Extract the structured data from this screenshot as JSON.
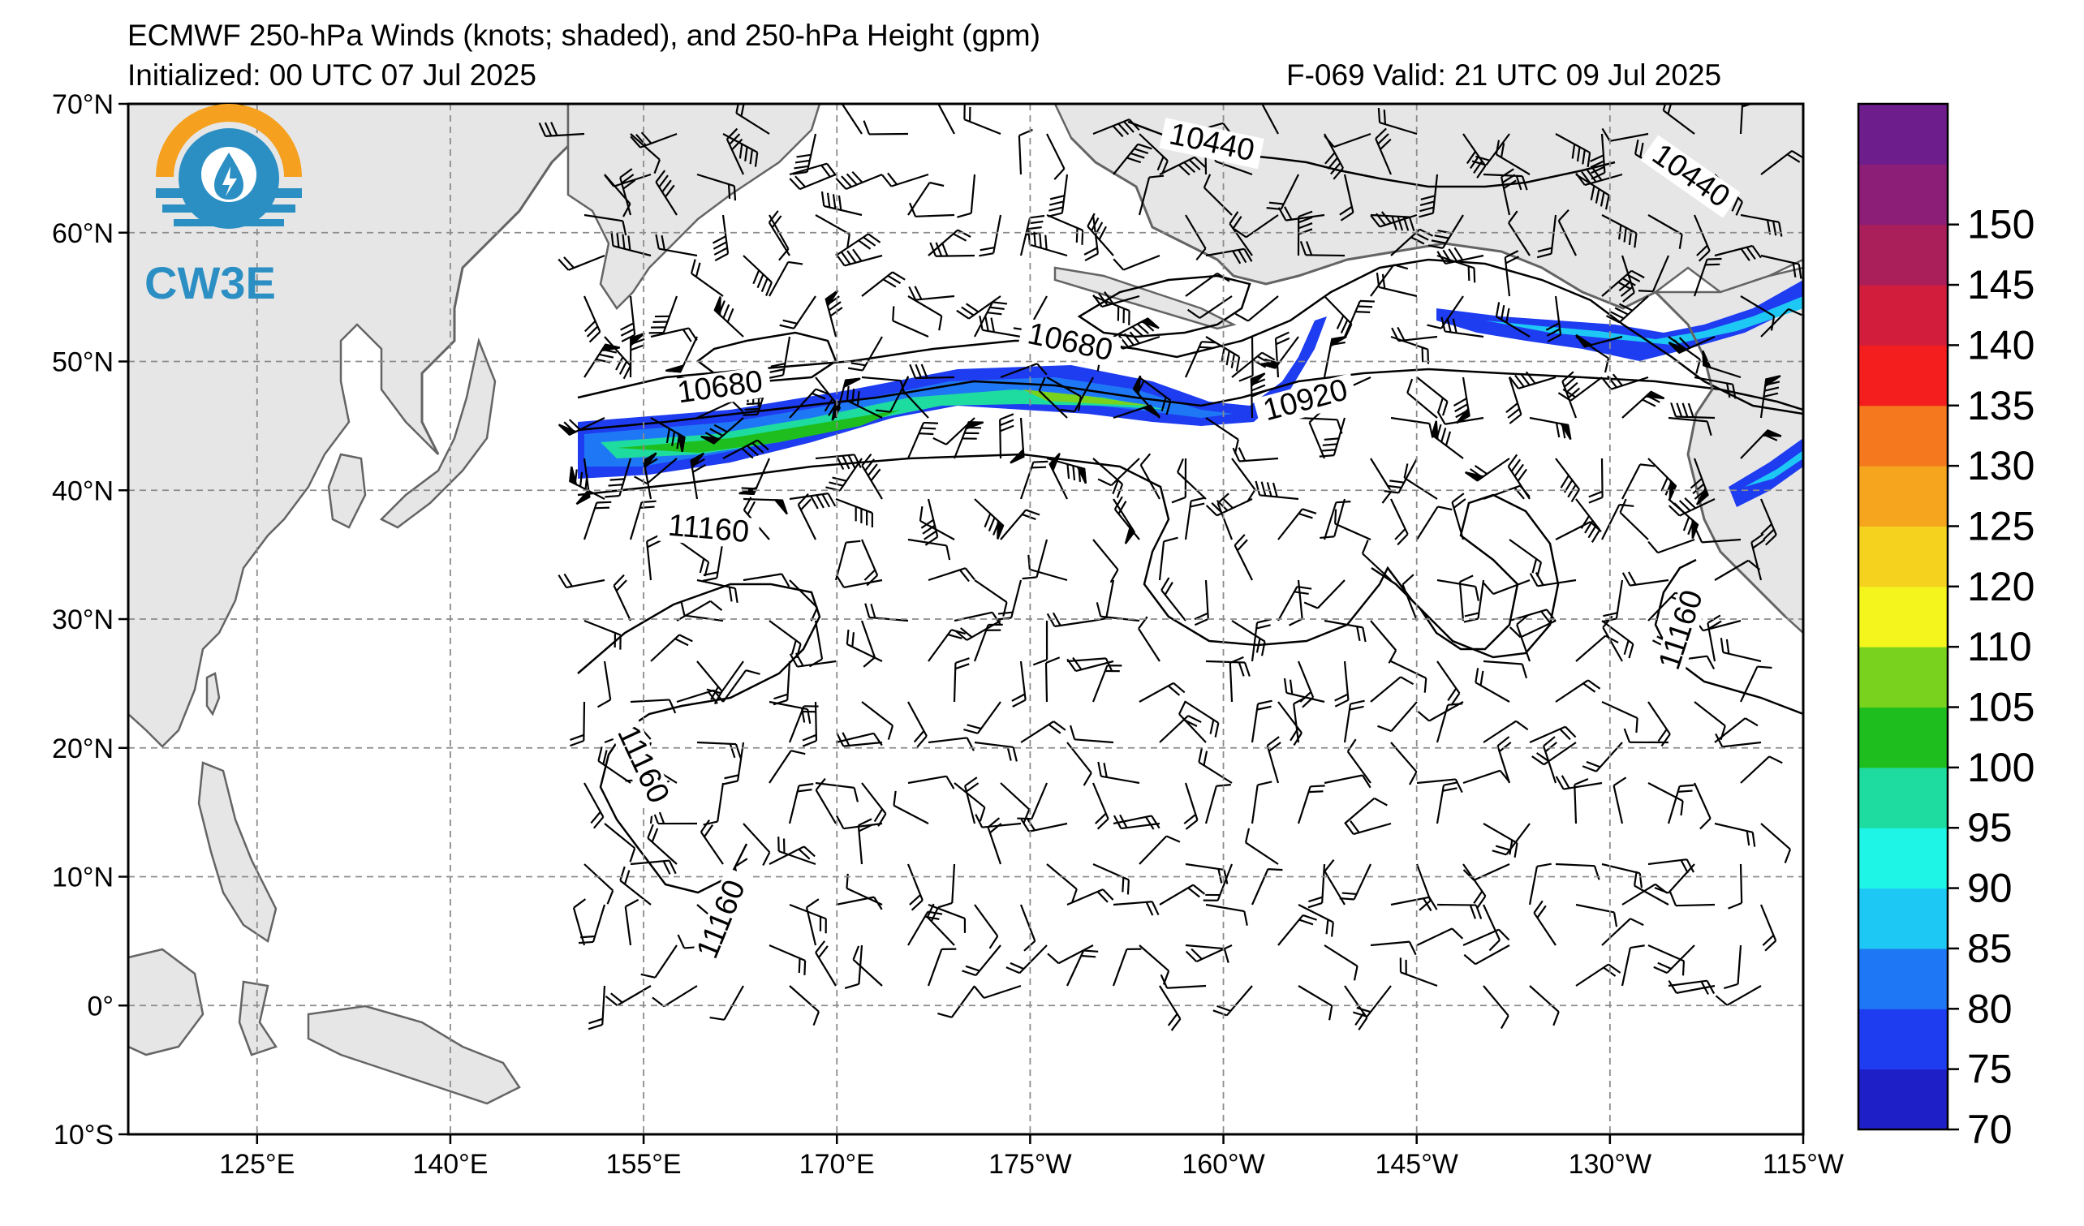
{
  "title": {
    "line1": "ECMWF 250-hPa Winds (knots; shaded), and 250-hPa Height (gpm)",
    "line2_left": "Initialized: 00 UTC 07 Jul 2025",
    "line2_right": "F-069  Valid: 21 UTC 09 Jul 2025"
  },
  "logo": {
    "text": "CW3E",
    "icon": "cw3e-water-drop-lightning-icon"
  },
  "map": {
    "lat_labels": [
      "70°N",
      "60°N",
      "50°N",
      "40°N",
      "30°N",
      "20°N",
      "10°N",
      "0°",
      "10°S"
    ],
    "lon_labels": [
      "125°E",
      "140°E",
      "155°E",
      "170°E",
      "175°W",
      "160°W",
      "145°W",
      "130°W",
      "115°W"
    ],
    "lat_range": [
      -10,
      70
    ],
    "lon_range_east": [
      115,
      245
    ],
    "contour_labels": [
      {
        "text": "10440",
        "lon": 199,
        "lat": 66.5,
        "rot": 12
      },
      {
        "text": "10440",
        "lon": 236,
        "lat": 64,
        "rot": 35
      },
      {
        "text": "10680",
        "lon": 188,
        "lat": 51,
        "rot": 12
      },
      {
        "text": "10680",
        "lon": 161,
        "lat": 47.5,
        "rot": -8
      },
      {
        "text": "10920",
        "lon": 206.5,
        "lat": 46.5,
        "rot": -15
      },
      {
        "text": "11160",
        "lon": 160,
        "lat": 36.5,
        "rot": 5
      },
      {
        "text": "11160",
        "lon": 154.5,
        "lat": 18.5,
        "rot": 65
      },
      {
        "text": "11160",
        "lon": 161.5,
        "lat": 6.5,
        "rot": -68
      },
      {
        "text": "11160",
        "lon": 236,
        "lat": 29,
        "rot": -72
      }
    ]
  },
  "colorbar": {
    "labels": [
      "70",
      "75",
      "80",
      "85",
      "90",
      "95",
      "100",
      "105",
      "110",
      "120",
      "125",
      "130",
      "135",
      "140",
      "145",
      "150"
    ],
    "colors": [
      "#1f1fc8",
      "#1e3cf0",
      "#1e78f5",
      "#1ec8f5",
      "#1ef5e6",
      "#1edca0",
      "#1ebe1e",
      "#78d21e",
      "#f5f51e",
      "#f5d21e",
      "#f5a51e",
      "#f5781e",
      "#f51e1e",
      "#d21e3c",
      "#aa1e5a",
      "#8c1e78",
      "#6e1e8c"
    ]
  },
  "style": {
    "land": "#e6e6e6",
    "coast": "#646464",
    "grid": "#8c8c8c"
  }
}
